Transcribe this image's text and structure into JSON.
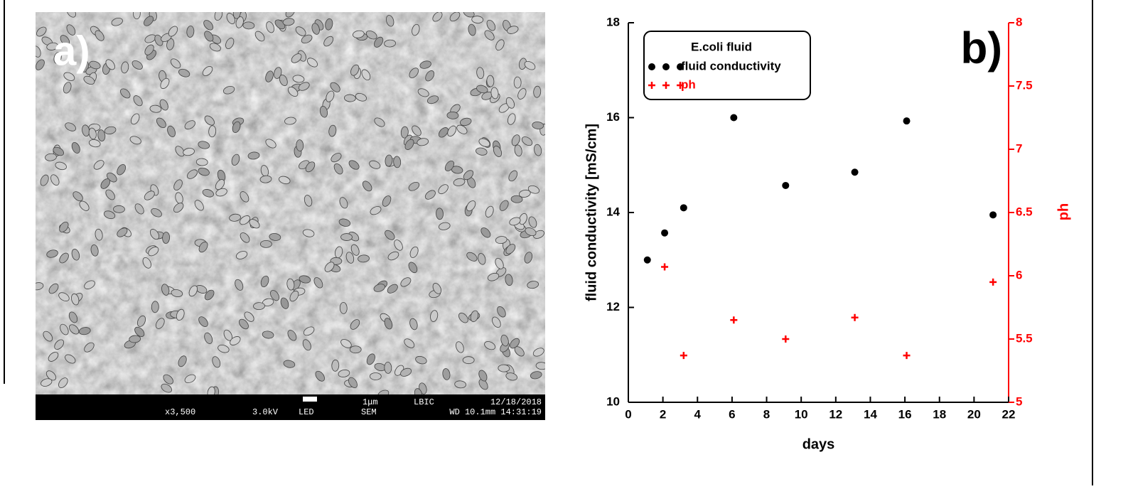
{
  "image_panel": {
    "label": "a)",
    "info": [
      "x3,500",
      "3.0kV",
      "LED",
      "1μm",
      "LBIC",
      "SEM",
      "12/18/2018",
      "WD 10.1mm 14:31:19"
    ]
  },
  "chart_data": {
    "type": "scatter",
    "panel_label": "b)",
    "legend_title": "E.coli fluid",
    "xlabel": "days",
    "ylabel": "fluid conductivity [mS/cm]",
    "y2label": "ph",
    "xlim": [
      0,
      22
    ],
    "xticks": [
      0,
      2,
      4,
      6,
      8,
      10,
      12,
      14,
      16,
      18,
      20,
      22
    ],
    "ylim": [
      10,
      18
    ],
    "yticks": [
      10,
      12,
      14,
      16,
      18
    ],
    "y2lim": [
      5,
      8
    ],
    "y2ticks": [
      5,
      5.5,
      6,
      6.5,
      7,
      7.5,
      8
    ],
    "series": [
      {
        "name": "fluid conductivity",
        "color": "#000000",
        "marker": "circle",
        "x": [
          1.1,
          2.1,
          3.2,
          6.1,
          9.1,
          13.1,
          16.1,
          21.1
        ],
        "values": [
          13.0,
          13.57,
          14.1,
          16.0,
          14.57,
          14.85,
          15.93,
          13.95
        ]
      },
      {
        "name": "ph",
        "color": "#ff0000",
        "marker": "plus",
        "axis": "y2",
        "x": [
          2.1,
          3.2,
          6.1,
          9.1,
          13.1,
          16.1,
          21.1
        ],
        "values": [
          6.07,
          5.37,
          5.65,
          5.5,
          5.67,
          5.37,
          5.95
        ]
      }
    ]
  }
}
